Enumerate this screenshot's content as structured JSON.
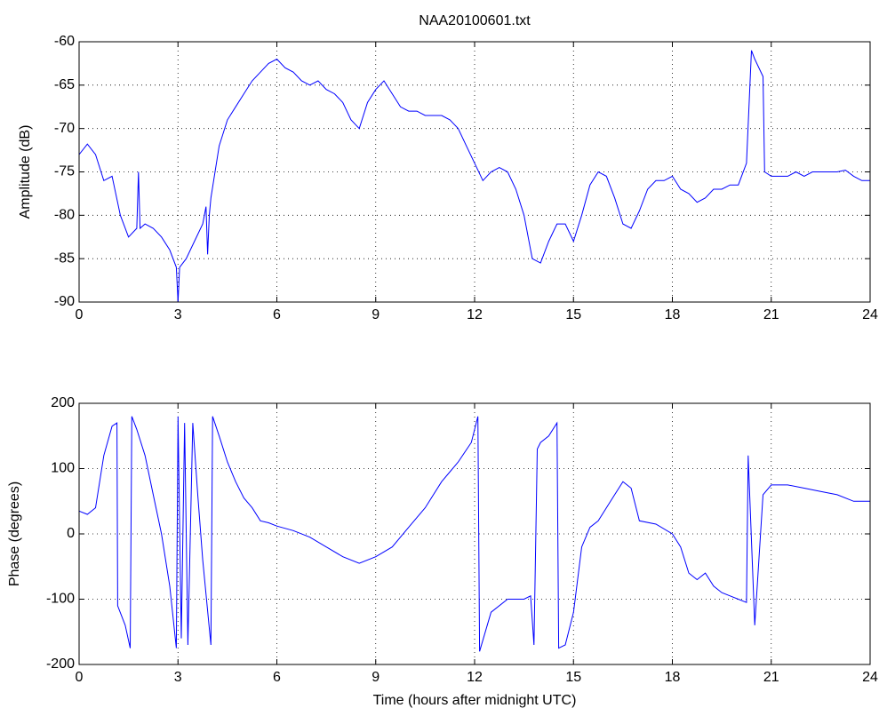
{
  "chart_data": [
    {
      "type": "line",
      "title": "NAA20100601.txt",
      "ylabel": "Amplitude (dB)",
      "color": "#0000ff",
      "grid": true,
      "xlim": [
        0,
        24
      ],
      "xticks": [
        0,
        3,
        6,
        9,
        12,
        15,
        18,
        21,
        24
      ],
      "ylim": [
        -90,
        -60
      ],
      "yticks": [
        -90,
        -85,
        -80,
        -75,
        -70,
        -65,
        -60
      ],
      "x": [
        0,
        0.25,
        0.5,
        0.75,
        1.0,
        1.25,
        1.5,
        1.75,
        1.8,
        1.85,
        2.0,
        2.25,
        2.5,
        2.75,
        2.95,
        3.0,
        3.05,
        3.25,
        3.5,
        3.75,
        3.85,
        3.9,
        3.95,
        4.0,
        4.25,
        4.5,
        4.75,
        5.0,
        5.25,
        5.5,
        5.75,
        6.0,
        6.25,
        6.5,
        6.75,
        7.0,
        7.25,
        7.5,
        7.75,
        8.0,
        8.25,
        8.5,
        8.75,
        9.0,
        9.25,
        9.5,
        9.75,
        10.0,
        10.25,
        10.5,
        10.75,
        11.0,
        11.25,
        11.5,
        11.75,
        12.0,
        12.25,
        12.5,
        12.75,
        13.0,
        13.25,
        13.5,
        13.75,
        14.0,
        14.25,
        14.5,
        14.75,
        15.0,
        15.25,
        15.5,
        15.75,
        16.0,
        16.25,
        16.5,
        16.75,
        17.0,
        17.25,
        17.5,
        17.75,
        18.0,
        18.25,
        18.5,
        18.75,
        19.0,
        19.25,
        19.5,
        19.75,
        20.0,
        20.25,
        20.4,
        20.5,
        20.75,
        20.8,
        21.0,
        21.25,
        21.5,
        21.75,
        22.0,
        22.25,
        22.5,
        22.75,
        23.0,
        23.25,
        23.5,
        23.75,
        24.0
      ],
      "values": [
        -73,
        -71.8,
        -73,
        -76,
        -75.5,
        -80,
        -82.5,
        -81.5,
        -75,
        -81.5,
        -81,
        -81.5,
        -82.5,
        -84,
        -86,
        -90,
        -86,
        -85,
        -83,
        -81,
        -79,
        -84.5,
        -80,
        -78,
        -72,
        -69,
        -67.5,
        -66,
        -64.5,
        -63.5,
        -62.5,
        -62,
        -63,
        -63.5,
        -64.5,
        -65,
        -64.5,
        -65.5,
        -66,
        -67,
        -69,
        -70,
        -67,
        -65.5,
        -64.5,
        -66,
        -67.5,
        -68,
        -68,
        -68.5,
        -68.5,
        -68.5,
        -69,
        -70,
        -72,
        -74,
        -76,
        -75,
        -74.5,
        -75,
        -77,
        -80,
        -85,
        -85.5,
        -83,
        -81,
        -81,
        -83,
        -80,
        -76.5,
        -75,
        -75.5,
        -78,
        -81,
        -81.5,
        -79.5,
        -77,
        -76,
        -76,
        -75.5,
        -77,
        -77.5,
        -78.5,
        -78,
        -77,
        -77,
        -76.5,
        -76.5,
        -74,
        -61,
        -62,
        -64,
        -75,
        -75.5,
        -75.5,
        -75.5,
        -75,
        -75.5,
        -75,
        -75,
        -75,
        -75,
        -74.8,
        -75.5,
        -76,
        -76
      ]
    },
    {
      "type": "line",
      "ylabel": "Phase (degrees)",
      "xlabel": "Time (hours after midnight UTC)",
      "color": "#0000ff",
      "grid": true,
      "xlim": [
        0,
        24
      ],
      "xticks": [
        0,
        3,
        6,
        9,
        12,
        15,
        18,
        21,
        24
      ],
      "ylim": [
        -200,
        200
      ],
      "yticks": [
        -200,
        -100,
        0,
        100,
        200
      ],
      "x": [
        0,
        0.25,
        0.5,
        0.75,
        1.0,
        1.15,
        1.17,
        1.4,
        1.55,
        1.6,
        1.75,
        2.0,
        2.25,
        2.5,
        2.75,
        2.95,
        3.0,
        3.1,
        3.2,
        3.3,
        3.45,
        3.6,
        3.75,
        4.0,
        4.05,
        4.25,
        4.5,
        4.75,
        5.0,
        5.25,
        5.5,
        5.75,
        6.0,
        6.5,
        7.0,
        7.5,
        8.0,
        8.5,
        9.0,
        9.5,
        10.0,
        10.5,
        11.0,
        11.5,
        11.9,
        12.1,
        12.15,
        12.5,
        13.0,
        13.5,
        13.7,
        13.8,
        13.9,
        14.0,
        14.25,
        14.5,
        14.55,
        14.75,
        15.0,
        15.25,
        15.5,
        15.75,
        16.0,
        16.25,
        16.5,
        16.75,
        17.0,
        17.5,
        18.0,
        18.25,
        18.5,
        18.75,
        19.0,
        19.25,
        19.5,
        19.75,
        20.0,
        20.25,
        20.3,
        20.5,
        20.75,
        21.0,
        21.5,
        22.0,
        22.5,
        23.0,
        23.5,
        24.0
      ],
      "values": [
        35,
        30,
        40,
        120,
        165,
        170,
        -110,
        -140,
        -175,
        180,
        160,
        120,
        60,
        0,
        -80,
        -175,
        180,
        -160,
        170,
        -170,
        170,
        60,
        -40,
        -170,
        180,
        150,
        110,
        80,
        55,
        40,
        20,
        17,
        12,
        5,
        -5,
        -20,
        -35,
        -45,
        -35,
        -20,
        10,
        40,
        80,
        110,
        140,
        180,
        -180,
        -120,
        -100,
        -100,
        -95,
        -170,
        130,
        140,
        150,
        170,
        -175,
        -170,
        -120,
        -20,
        10,
        20,
        40,
        60,
        80,
        70,
        20,
        15,
        0,
        -20,
        -60,
        -70,
        -60,
        -80,
        -90,
        -95,
        -100,
        -105,
        120,
        -140,
        60,
        75,
        75,
        70,
        65,
        60,
        50,
        50
      ]
    }
  ]
}
